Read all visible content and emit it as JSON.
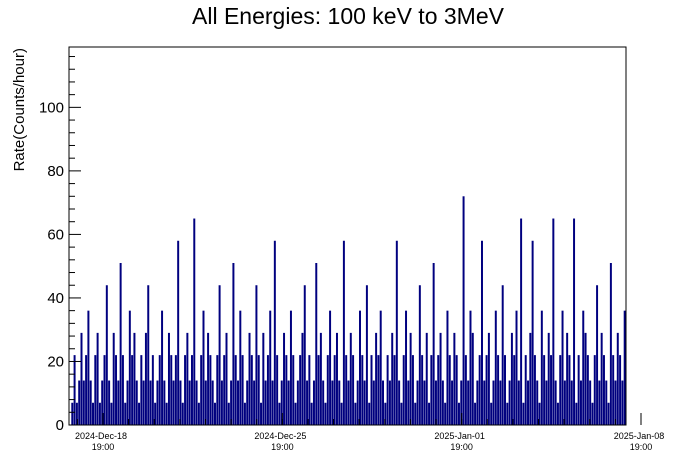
{
  "chart_data": {
    "type": "bar",
    "title": "All Energies:  100 keV to 3MeV",
    "ylabel": "Rate(Counts/hour)",
    "xlabel": "",
    "ylim": [
      0,
      119
    ],
    "yticks": [
      0,
      20,
      40,
      60,
      80,
      100
    ],
    "xlim": [
      "2024-Dec-16 12:00",
      "2025-Jan-08 19:00"
    ],
    "xticks": [
      {
        "date": "2024-Dec-18",
        "time": "19:00"
      },
      {
        "date": "2024-Dec-25",
        "time": "19:00"
      },
      {
        "date": "2025-Jan-01",
        "time": "19:00"
      },
      {
        "date": "2025-Jan-08",
        "time": "19:00"
      }
    ],
    "bar_color": "#00007f",
    "grid": false,
    "series": [
      {
        "values": [
          0,
          7,
          22,
          7,
          14,
          29,
          14,
          22,
          36,
          14,
          7,
          22,
          29,
          7,
          14,
          22,
          44,
          14,
          7,
          29,
          22,
          14,
          51,
          22,
          7,
          14,
          36,
          22,
          29,
          14,
          7,
          22,
          14,
          29,
          44,
          14,
          22,
          7,
          14,
          22,
          36,
          14,
          7,
          29,
          22,
          14,
          22,
          58,
          14,
          7,
          22,
          29,
          14,
          22,
          65,
          14,
          7,
          22,
          36,
          14,
          29,
          22,
          14,
          7,
          22,
          44,
          14,
          22,
          29,
          7,
          14,
          51,
          22,
          14,
          36,
          22,
          7,
          14,
          29,
          22,
          14,
          44,
          22,
          7,
          29,
          14,
          22,
          36,
          14,
          58,
          22,
          7,
          14,
          29,
          22,
          14,
          36,
          22,
          7,
          14,
          22,
          29,
          44,
          14,
          22,
          7,
          14,
          51,
          22,
          29,
          14,
          7,
          22,
          36,
          14,
          22,
          29,
          14,
          7,
          58,
          22,
          14,
          29,
          22,
          7,
          14,
          36,
          22,
          14,
          44,
          7,
          22,
          14,
          29,
          22,
          36,
          14,
          7,
          22,
          14,
          29,
          22,
          58,
          14,
          7,
          22,
          36,
          14,
          29,
          22,
          7,
          14,
          44,
          22,
          14,
          29,
          7,
          22,
          51,
          14,
          22,
          29,
          14,
          7,
          36,
          22,
          14,
          29,
          22,
          7,
          14,
          72,
          22,
          14,
          36,
          29,
          7,
          14,
          22,
          58,
          14,
          22,
          29,
          7,
          14,
          36,
          22,
          14,
          44,
          22,
          7,
          14,
          29,
          22,
          36,
          14,
          65,
          7,
          22,
          14,
          29,
          58,
          22,
          14,
          7,
          36,
          22,
          14,
          29,
          22,
          65,
          14,
          7,
          22,
          36,
          14,
          29,
          22,
          14,
          65,
          7,
          22,
          14,
          36,
          29,
          22,
          14,
          7,
          22,
          44,
          14,
          29,
          22,
          14,
          7,
          51,
          22,
          14,
          29,
          22,
          14,
          36
        ]
      }
    ]
  }
}
